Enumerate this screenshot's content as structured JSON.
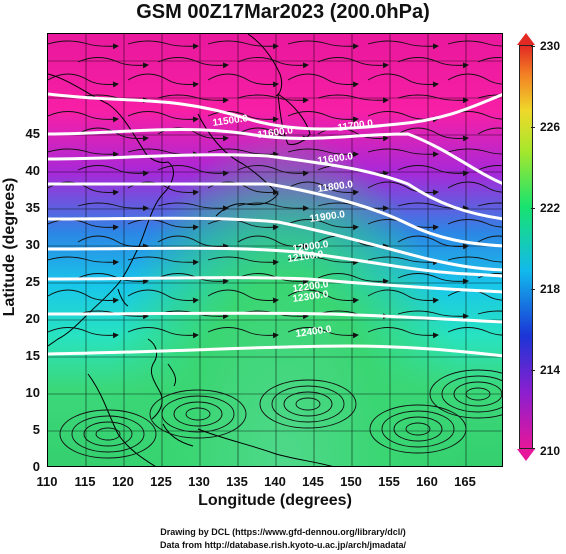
{
  "title": "GSM 00Z17Mar2023 (200.0hPa)",
  "x_axis": {
    "label": "Longitude (degrees)",
    "ticks": [
      "110",
      "115",
      "120",
      "125",
      "130",
      "135",
      "140",
      "145",
      "150",
      "155",
      "160",
      "165"
    ]
  },
  "y_axis": {
    "label": "Latitude  (degrees)",
    "ticks": [
      "0",
      "5",
      "10",
      "15",
      "20",
      "25",
      "30",
      "35",
      "40",
      "45"
    ]
  },
  "colorbar": {
    "ticks": [
      "230",
      "226",
      "222",
      "218",
      "214",
      "210"
    ],
    "colors": [
      "#e6179a",
      "#8a1fd0",
      "#1b35d6",
      "#12b9ec",
      "#18e36f",
      "#a7e72c",
      "#f0d82a",
      "#f27f24",
      "#e22a24"
    ]
  },
  "contour_labels": [
    "11500.0",
    "11600.0",
    "11700.0",
    "11600.0",
    "11800.0",
    "11900.0",
    "12000.0",
    "12100.0",
    "12200.0",
    "12300.0",
    "12400.0"
  ],
  "credits": {
    "line1": "Drawing by DCL (https://www.gfd-dennou.org/library/dcl/)",
    "line2": "Data from http://database.rish.kyoto-u.ac.jp/arch/jmadata/"
  }
}
